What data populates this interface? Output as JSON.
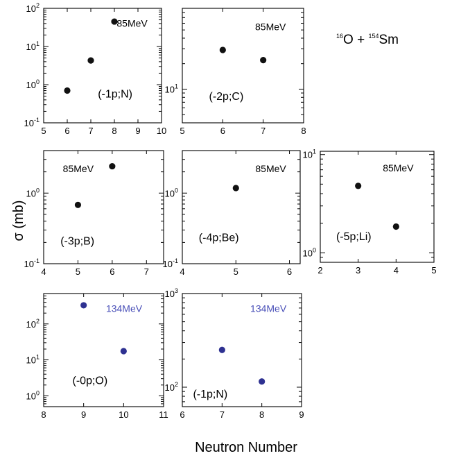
{
  "reaction": {
    "a": "16",
    "p1": "O + ",
    "b": "154",
    "p2": "Sm"
  },
  "ylabel": "σ (mb)",
  "xlabel": "Neutron Number",
  "colors": {
    "black_series": "#111111",
    "blue_series": "#2e3191",
    "blue_label": "#4a50b8",
    "axis": "#000000"
  },
  "chart_data": [
    {
      "type": "scatter",
      "label": "(-1p;N)",
      "energy": "85MeV",
      "color": "#111111",
      "labelColor": "#000000",
      "energyColor": "#000000",
      "xlim": [
        5,
        10
      ],
      "ylim": [
        0.1,
        100
      ],
      "yscale": "log",
      "xticks": [
        5,
        6,
        7,
        8,
        9,
        10
      ],
      "yticks": [
        0.1,
        1,
        10,
        100
      ],
      "x": [
        6,
        7,
        8
      ],
      "y": [
        0.7,
        4.3,
        45
      ]
    },
    {
      "type": "scatter",
      "label": "(-2p;C)",
      "energy": "85MeV",
      "color": "#111111",
      "labelColor": "#000000",
      "energyColor": "#000000",
      "xlim": [
        5,
        8
      ],
      "ylim": [
        4,
        90
      ],
      "yscale": "log",
      "xticks": [
        5,
        6,
        7,
        8
      ],
      "yticks": [
        10
      ],
      "x": [
        6,
        7
      ],
      "y": [
        29,
        22
      ]
    },
    {
      "type": "scatter",
      "label": "(-3p;B)",
      "energy": "85MeV",
      "color": "#111111",
      "labelColor": "#000000",
      "energyColor": "#000000",
      "xlim": [
        4,
        7.5
      ],
      "ylim": [
        0.1,
        4
      ],
      "yscale": "log",
      "xticks": [
        4,
        5,
        6,
        7
      ],
      "yticks": [
        0.1,
        1
      ],
      "x": [
        5,
        6
      ],
      "y": [
        0.68,
        2.4
      ]
    },
    {
      "type": "scatter",
      "label": "(-4p;Be)",
      "energy": "85MeV",
      "color": "#111111",
      "labelColor": "#000000",
      "energyColor": "#000000",
      "xlim": [
        4,
        6.2
      ],
      "ylim": [
        0.1,
        4
      ],
      "yscale": "log",
      "xticks": [
        4,
        5,
        6
      ],
      "yticks": [
        0.1,
        1
      ],
      "x": [
        5
      ],
      "y": [
        1.18
      ]
    },
    {
      "type": "scatter",
      "label": "(-5p;Li)",
      "energy": "85MeV",
      "color": "#111111",
      "labelColor": "#000000",
      "energyColor": "#000000",
      "xlim": [
        2,
        5
      ],
      "ylim": [
        0.8,
        10.8
      ],
      "yscale": "log",
      "xticks": [
        2,
        3,
        4,
        5
      ],
      "yticks": [
        1,
        10
      ],
      "x": [
        3,
        4
      ],
      "y": [
        4.8,
        1.85
      ]
    },
    {
      "type": "scatter",
      "label": "(-0p;O)",
      "energy": "134MeV",
      "color": "#2e3191",
      "labelColor": "#1c1f6e",
      "energyColor": "#4a50b8",
      "xlim": [
        8,
        11
      ],
      "ylim": [
        0.5,
        700
      ],
      "yscale": "log",
      "xticks": [
        8,
        9,
        10,
        11
      ],
      "yticks": [
        1,
        10,
        100
      ],
      "x": [
        9,
        10
      ],
      "y": [
        330,
        17.5
      ]
    },
    {
      "type": "scatter",
      "label": "(-1p;N)",
      "energy": "134MeV",
      "color": "#2e3191",
      "labelColor": "#1c1f6e",
      "energyColor": "#4a50b8",
      "xlim": [
        6,
        9
      ],
      "ylim": [
        62,
        1000
      ],
      "yscale": "log",
      "xticks": [
        6,
        7,
        8,
        9
      ],
      "yticks": [
        100,
        1000
      ],
      "x": [
        7,
        8
      ],
      "y": [
        250,
        115
      ]
    }
  ]
}
